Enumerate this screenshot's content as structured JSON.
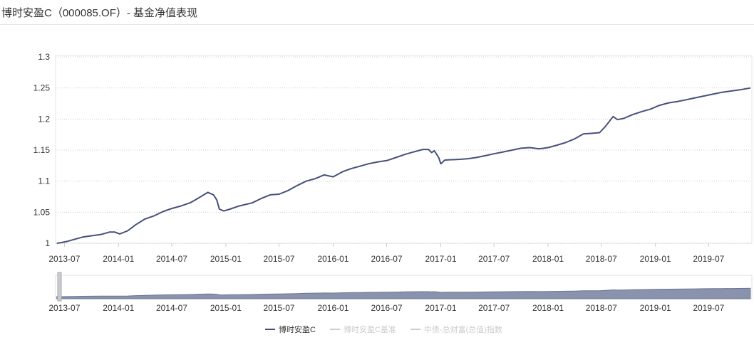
{
  "header": {
    "title": "博时安盈C（000085.OF）- 基金净值表现"
  },
  "colors": {
    "series_line": "#46507a",
    "navigator_fill": "#8a93ad",
    "navigator_line": "#6b7592",
    "legend_inactive": "#cccccc",
    "grid": "#cccccc"
  },
  "chart_data": {
    "type": "line",
    "title": "",
    "xlabel": "",
    "ylabel": "",
    "x_range": [
      "2013-06-01",
      "2019-11-25"
    ],
    "ylim": [
      1,
      1.3
    ],
    "y_ticks": [
      "1",
      "1.05",
      "1.1",
      "1.15",
      "1.2",
      "1.25",
      "1.3"
    ],
    "x_ticks": [
      "2013-07",
      "2014-01",
      "2014-07",
      "2015-01",
      "2015-07",
      "2016-01",
      "2016-07",
      "2017-01",
      "2017-07",
      "2018-01",
      "2018-07",
      "2019-01",
      "2019-07"
    ],
    "grid": "horizontal dotted",
    "legend_position": "bottom-center",
    "navigator": true,
    "series": [
      {
        "name": "博时安盈C",
        "visible": true,
        "points": [
          [
            "2013-06-05",
            1.0
          ],
          [
            "2013-06-20",
            1.001
          ],
          [
            "2013-07-10",
            1.003
          ],
          [
            "2013-08-01",
            1.006
          ],
          [
            "2013-09-01",
            1.01
          ],
          [
            "2013-10-01",
            1.012
          ],
          [
            "2013-11-01",
            1.014
          ],
          [
            "2013-12-01",
            1.018
          ],
          [
            "2013-12-20",
            1.018
          ],
          [
            "2014-01-05",
            1.015
          ],
          [
            "2014-02-01",
            1.02
          ],
          [
            "2014-03-01",
            1.03
          ],
          [
            "2014-04-01",
            1.039
          ],
          [
            "2014-05-01",
            1.044
          ],
          [
            "2014-06-01",
            1.051
          ],
          [
            "2014-07-01",
            1.056
          ],
          [
            "2014-08-01",
            1.06
          ],
          [
            "2014-09-01",
            1.065
          ],
          [
            "2014-10-01",
            1.073
          ],
          [
            "2014-11-01",
            1.082
          ],
          [
            "2014-11-20",
            1.078
          ],
          [
            "2014-12-01",
            1.07
          ],
          [
            "2014-12-10",
            1.055
          ],
          [
            "2014-12-25",
            1.052
          ],
          [
            "2015-01-15",
            1.055
          ],
          [
            "2015-02-15",
            1.06
          ],
          [
            "2015-04-01",
            1.065
          ],
          [
            "2015-05-01",
            1.072
          ],
          [
            "2015-06-01",
            1.078
          ],
          [
            "2015-07-01",
            1.079
          ],
          [
            "2015-08-01",
            1.085
          ],
          [
            "2015-09-01",
            1.093
          ],
          [
            "2015-10-01",
            1.1
          ],
          [
            "2015-11-01",
            1.104
          ],
          [
            "2015-12-01",
            1.11
          ],
          [
            "2016-01-01",
            1.107
          ],
          [
            "2016-02-01",
            1.115
          ],
          [
            "2016-03-01",
            1.12
          ],
          [
            "2016-04-01",
            1.124
          ],
          [
            "2016-05-01",
            1.128
          ],
          [
            "2016-06-01",
            1.131
          ],
          [
            "2016-07-01",
            1.133
          ],
          [
            "2016-08-01",
            1.138
          ],
          [
            "2016-09-01",
            1.143
          ],
          [
            "2016-10-01",
            1.147
          ],
          [
            "2016-11-01",
            1.151
          ],
          [
            "2016-11-20",
            1.151
          ],
          [
            "2016-12-01",
            1.146
          ],
          [
            "2016-12-10",
            1.149
          ],
          [
            "2016-12-25",
            1.138
          ],
          [
            "2017-01-01",
            1.128
          ],
          [
            "2017-01-15",
            1.134
          ],
          [
            "2017-03-01",
            1.135
          ],
          [
            "2017-04-01",
            1.136
          ],
          [
            "2017-05-01",
            1.138
          ],
          [
            "2017-06-01",
            1.141
          ],
          [
            "2017-07-01",
            1.144
          ],
          [
            "2017-08-01",
            1.147
          ],
          [
            "2017-09-01",
            1.15
          ],
          [
            "2017-10-01",
            1.153
          ],
          [
            "2017-11-01",
            1.154
          ],
          [
            "2017-12-01",
            1.152
          ],
          [
            "2018-01-01",
            1.154
          ],
          [
            "2018-02-01",
            1.158
          ],
          [
            "2018-03-01",
            1.162
          ],
          [
            "2018-04-01",
            1.168
          ],
          [
            "2018-05-01",
            1.176
          ],
          [
            "2018-06-01",
            1.177
          ],
          [
            "2018-06-25",
            1.178
          ],
          [
            "2018-07-15",
            1.188
          ],
          [
            "2018-08-10",
            1.204
          ],
          [
            "2018-08-25",
            1.199
          ],
          [
            "2018-09-15",
            1.201
          ],
          [
            "2018-10-15",
            1.207
          ],
          [
            "2018-11-15",
            1.212
          ],
          [
            "2018-12-15",
            1.216
          ],
          [
            "2019-01-15",
            1.222
          ],
          [
            "2019-02-15",
            1.226
          ],
          [
            "2019-03-15",
            1.228
          ],
          [
            "2019-04-15",
            1.231
          ],
          [
            "2019-05-15",
            1.234
          ],
          [
            "2019-06-15",
            1.237
          ],
          [
            "2019-07-15",
            1.24
          ],
          [
            "2019-08-15",
            1.243
          ],
          [
            "2019-09-15",
            1.245
          ],
          [
            "2019-10-15",
            1.247
          ],
          [
            "2019-11-20",
            1.25
          ]
        ]
      },
      {
        "name": "博时安盈C基准",
        "visible": false
      },
      {
        "name": "中债-总财富(总值)指数",
        "visible": false
      }
    ]
  }
}
